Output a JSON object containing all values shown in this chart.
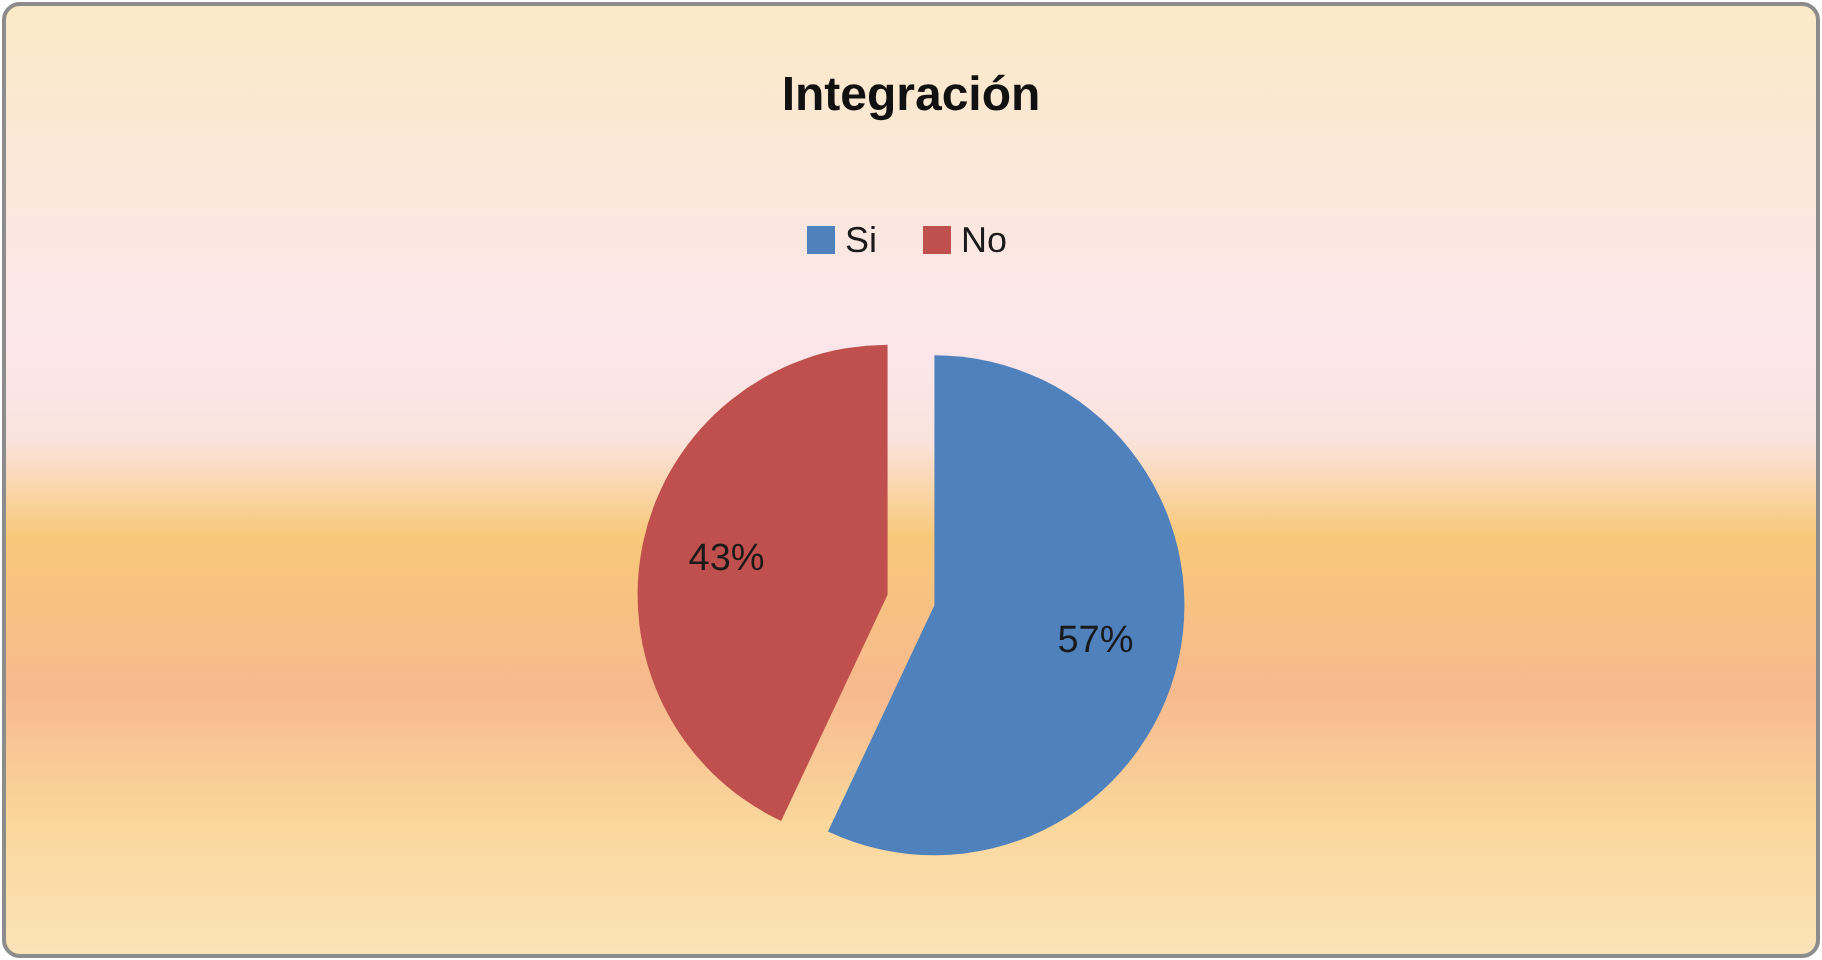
{
  "chart_data": {
    "type": "pie",
    "title": "Integración",
    "categories": [
      "Si",
      "No"
    ],
    "values": [
      57,
      43
    ],
    "colors": [
      "#4f81bd",
      "#c0504d"
    ],
    "value_labels": [
      "57%",
      "43%"
    ],
    "legend": "top"
  }
}
